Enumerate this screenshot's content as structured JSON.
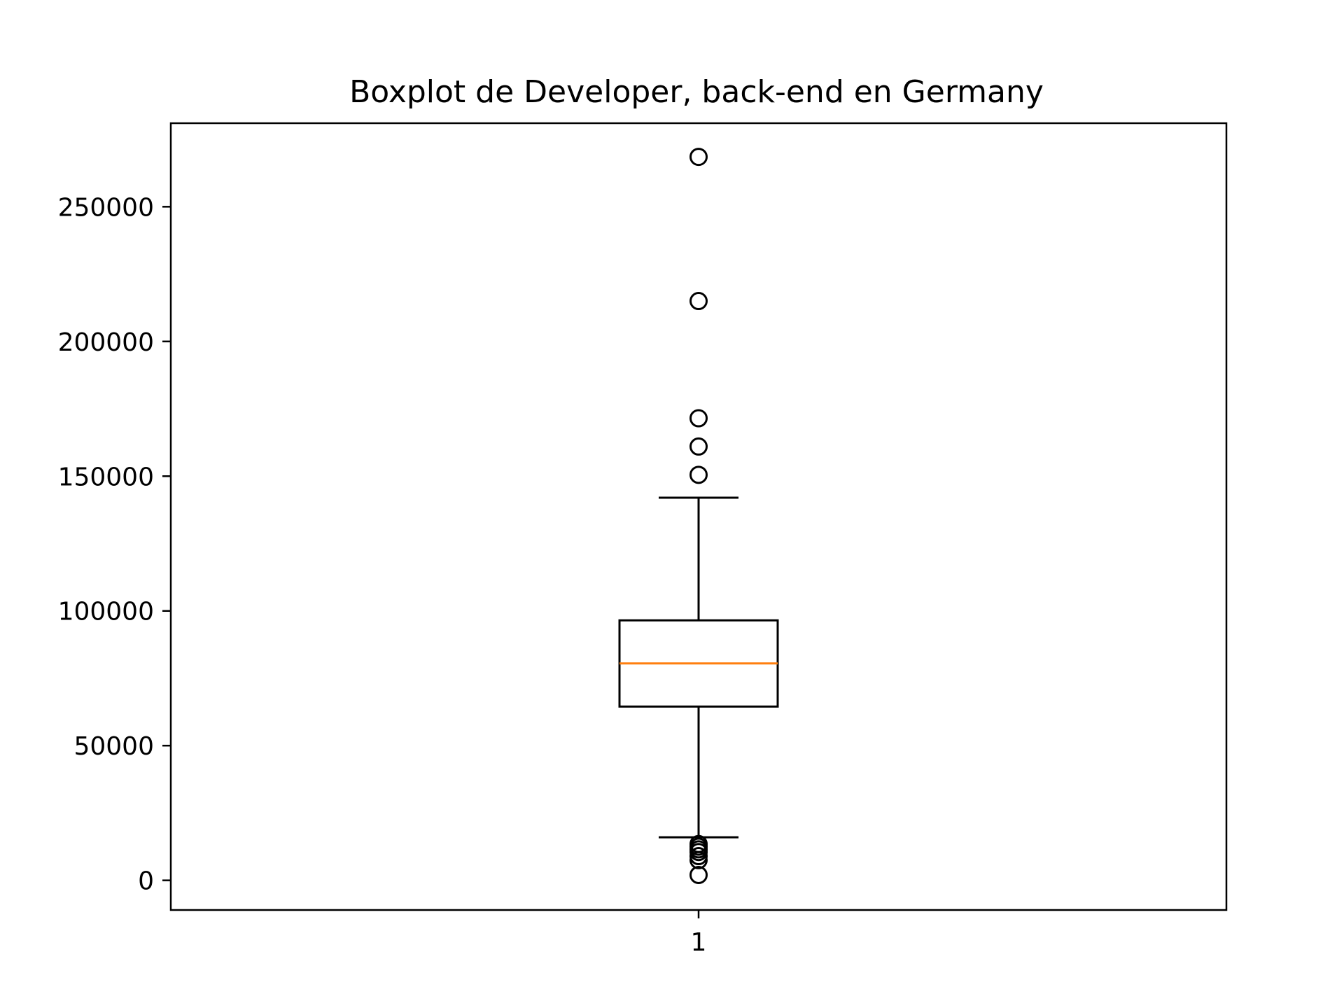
{
  "chart_data": {
    "type": "boxplot",
    "title": "Boxplot de Developer, back-end en Germany",
    "xlabel": "",
    "ylabel": "",
    "categories": [
      "1"
    ],
    "ylim": [
      -11000,
      281000
    ],
    "yticks": [
      0,
      50000,
      100000,
      150000,
      200000,
      250000
    ],
    "ytick_labels": [
      "0",
      "50000",
      "100000",
      "150000",
      "200000",
      "250000"
    ],
    "grid": false,
    "series": [
      {
        "whisker_low": 16000,
        "q1": 64500,
        "median": 80500,
        "q3": 96500,
        "whisker_high": 142000,
        "outliers": [
          2000,
          7500,
          9000,
          10500,
          11500,
          12500,
          13500,
          150500,
          161000,
          171500,
          215000,
          268500
        ]
      }
    ],
    "colors": {
      "box": "#000000",
      "median": "#ff7f0e",
      "outlier": "#000000"
    }
  }
}
